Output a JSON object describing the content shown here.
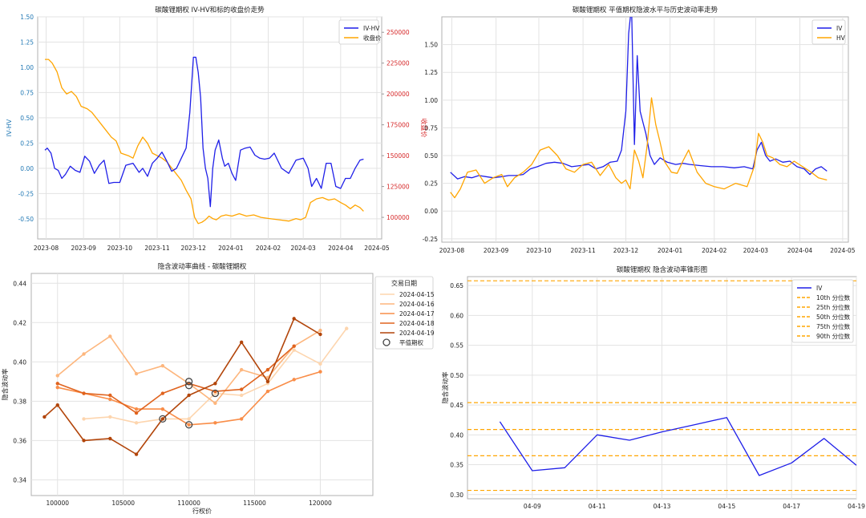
{
  "chart_data": [
    {
      "type": "line",
      "title": "碳酸锂期权 IV-HV和标的收盘价走势",
      "ylabel": "IV-HV",
      "y2label": "收盘价",
      "x_ticks": [
        "2023-08",
        "2023-09",
        "2023-10",
        "2023-11",
        "2023-12",
        "2024-01",
        "2024-02",
        "2024-03",
        "2024-04",
        "2024-05"
      ],
      "x_range": [
        "2023-07-25",
        "2024-05-05"
      ],
      "ylim": [
        -0.7,
        1.5
      ],
      "y_ticks": [
        -0.5,
        -0.25,
        0,
        0.25,
        0.5,
        0.75,
        1,
        1.25,
        1.5
      ],
      "y_tick_labels": [
        "-0.50",
        "-0.25",
        "0.00",
        "0.25",
        "0.50",
        "0.75",
        "1.00",
        "1.25",
        "1.50"
      ],
      "y2lim": [
        82500,
        262500
      ],
      "y2_ticks": [
        100000,
        125000,
        150000,
        175000,
        200000,
        225000,
        250000
      ],
      "y2_tick_labels": [
        "100000",
        "125000",
        "150000",
        "175000",
        "200000",
        "225000",
        "250000"
      ],
      "grid": true,
      "legend_position": "top-right",
      "colors": {
        "left_axis": "#1f77b4",
        "right_axis": "#d62728"
      },
      "series": [
        {
          "name": "IV-HV",
          "axis": "left",
          "color": "#1f1fe8",
          "x": [
            "2023-07-31",
            "2023-08-02",
            "2023-08-05",
            "2023-08-08",
            "2023-08-11",
            "2023-08-14",
            "2023-08-17",
            "2023-08-21",
            "2023-08-25",
            "2023-08-29",
            "2023-09-02",
            "2023-09-06",
            "2023-09-10",
            "2023-09-14",
            "2023-09-18",
            "2023-09-22",
            "2023-09-26",
            "2023-10-01",
            "2023-10-06",
            "2023-10-12",
            "2023-10-17",
            "2023-10-20",
            "2023-10-24",
            "2023-10-28",
            "2023-11-01",
            "2023-11-05",
            "2023-11-09",
            "2023-11-13",
            "2023-11-17",
            "2023-11-21",
            "2023-11-25",
            "2023-11-28",
            "2023-12-01",
            "2023-12-03",
            "2023-12-05",
            "2023-12-07",
            "2023-12-09",
            "2023-12-11",
            "2023-12-13",
            "2023-12-15",
            "2023-12-17",
            "2023-12-19",
            "2023-12-22",
            "2023-12-25",
            "2023-12-27",
            "2023-12-30",
            "2024-01-02",
            "2024-01-05",
            "2024-01-09",
            "2024-01-13",
            "2024-01-17",
            "2024-01-21",
            "2024-01-25",
            "2024-01-29",
            "2024-02-02",
            "2024-02-06",
            "2024-02-12",
            "2024-02-18",
            "2024-02-24",
            "2024-03-01",
            "2024-03-05",
            "2024-03-08",
            "2024-03-12",
            "2024-03-16",
            "2024-03-20",
            "2024-03-24",
            "2024-03-28",
            "2024-04-01",
            "2024-04-05",
            "2024-04-09",
            "2024-04-13",
            "2024-04-17",
            "2024-04-20"
          ],
          "values": [
            0.18,
            0.2,
            0.15,
            0.0,
            -0.02,
            -0.1,
            -0.06,
            0.02,
            -0.02,
            -0.04,
            0.12,
            0.07,
            -0.05,
            0.03,
            0.08,
            -0.15,
            -0.14,
            -0.14,
            0.03,
            0.05,
            -0.04,
            0.0,
            -0.08,
            0.05,
            0.1,
            0.16,
            0.07,
            -0.03,
            0.0,
            0.1,
            0.2,
            0.55,
            1.1,
            1.1,
            0.95,
            0.7,
            0.2,
            0.0,
            -0.1,
            -0.38,
            0.0,
            0.18,
            0.28,
            0.1,
            0.02,
            0.05,
            -0.05,
            -0.12,
            0.18,
            0.2,
            0.21,
            0.13,
            0.1,
            0.09,
            0.1,
            0.15,
            0.0,
            -0.05,
            0.08,
            0.1,
            0.0,
            -0.18,
            -0.1,
            -0.2,
            0.05,
            0.05,
            -0.18,
            -0.2,
            -0.1,
            -0.1,
            0.0,
            0.08,
            0.09
          ]
        },
        {
          "name": "收盘价",
          "axis": "right",
          "color": "#ffa500",
          "x": [
            "2023-07-31",
            "2023-08-03",
            "2023-08-06",
            "2023-08-10",
            "2023-08-14",
            "2023-08-18",
            "2023-08-22",
            "2023-08-26",
            "2023-08-30",
            "2023-09-04",
            "2023-09-08",
            "2023-09-12",
            "2023-09-16",
            "2023-09-20",
            "2023-09-24",
            "2023-09-28",
            "2023-10-02",
            "2023-10-08",
            "2023-10-12",
            "2023-10-16",
            "2023-10-20",
            "2023-10-24",
            "2023-10-28",
            "2023-11-01",
            "2023-11-05",
            "2023-11-09",
            "2023-11-13",
            "2023-11-17",
            "2023-11-21",
            "2023-11-25",
            "2023-11-29",
            "2023-12-02",
            "2023-12-05",
            "2023-12-08",
            "2023-12-11",
            "2023-12-14",
            "2023-12-17",
            "2023-12-20",
            "2023-12-24",
            "2023-12-28",
            "2024-01-02",
            "2024-01-08",
            "2024-01-14",
            "2024-01-20",
            "2024-01-26",
            "2024-02-02",
            "2024-02-10",
            "2024-02-18",
            "2024-02-24",
            "2024-02-28",
            "2024-03-03",
            "2024-03-07",
            "2024-03-12",
            "2024-03-17",
            "2024-03-22",
            "2024-03-27",
            "2024-04-01",
            "2024-04-05",
            "2024-04-09",
            "2024-04-13",
            "2024-04-17",
            "2024-04-20"
          ],
          "values": [
            228000,
            228000,
            225000,
            218000,
            205000,
            200000,
            202000,
            198000,
            190000,
            188000,
            185000,
            180000,
            175000,
            170000,
            165000,
            162000,
            152000,
            150000,
            148000,
            158000,
            165000,
            160000,
            152000,
            150000,
            148000,
            145000,
            140000,
            135000,
            130000,
            122000,
            115000,
            100000,
            95000,
            96000,
            98000,
            101000,
            99000,
            98000,
            101000,
            102000,
            101000,
            103000,
            101000,
            102000,
            100000,
            99000,
            98000,
            97000,
            99000,
            98000,
            100000,
            112000,
            115000,
            116000,
            114000,
            115000,
            112000,
            110000,
            107000,
            110000,
            108000,
            105000
          ]
        }
      ]
    },
    {
      "type": "line",
      "title": "碳酸锂期权 平值期权隐波水平与历史波动率走势",
      "x_ticks": [
        "2023-08",
        "2023-09",
        "2023-10",
        "2023-11",
        "2023-12",
        "2024-01",
        "2024-02",
        "2024-03",
        "2024-04",
        "2024-05"
      ],
      "x_range": [
        "2023-07-25",
        "2024-05-05"
      ],
      "ylim": [
        -0.28,
        1.75
      ],
      "y_ticks": [
        -0.25,
        0,
        0.25,
        0.5,
        0.75,
        1,
        1.25,
        1.5
      ],
      "y_tick_labels": [
        "-0.25",
        "0.00",
        "0.25",
        "0.50",
        "0.75",
        "1.00",
        "1.25",
        "1.50"
      ],
      "grid": true,
      "legend_position": "top-right",
      "series": [
        {
          "name": "IV",
          "color": "#1f1fe8",
          "x": [
            "2023-07-31",
            "2023-08-05",
            "2023-08-10",
            "2023-08-15",
            "2023-08-20",
            "2023-08-25",
            "2023-08-30",
            "2023-09-05",
            "2023-09-10",
            "2023-09-15",
            "2023-09-20",
            "2023-09-25",
            "2023-09-30",
            "2023-10-06",
            "2023-10-12",
            "2023-10-18",
            "2023-10-24",
            "2023-10-30",
            "2023-11-05",
            "2023-11-10",
            "2023-11-15",
            "2023-11-20",
            "2023-11-25",
            "2023-11-28",
            "2023-12-01",
            "2023-12-03",
            "2023-12-05",
            "2023-12-07",
            "2023-12-09",
            "2023-12-11",
            "2023-12-13",
            "2023-12-15",
            "2023-12-18",
            "2023-12-21",
            "2023-12-25",
            "2023-12-30",
            "2024-01-05",
            "2024-01-10",
            "2024-01-15",
            "2024-01-22",
            "2024-01-30",
            "2024-02-07",
            "2024-02-15",
            "2024-02-22",
            "2024-02-28",
            "2024-03-02",
            "2024-03-05",
            "2024-03-08",
            "2024-03-11",
            "2024-03-15",
            "2024-03-20",
            "2024-03-25",
            "2024-03-30",
            "2024-04-04",
            "2024-04-08",
            "2024-04-12",
            "2024-04-16",
            "2024-04-20"
          ],
          "values": [
            0.35,
            0.29,
            0.31,
            0.3,
            0.32,
            0.31,
            0.3,
            0.31,
            0.32,
            0.32,
            0.33,
            0.38,
            0.4,
            0.43,
            0.44,
            0.43,
            0.4,
            0.41,
            0.42,
            0.38,
            0.4,
            0.44,
            0.45,
            0.55,
            0.9,
            1.6,
            1.85,
            0.6,
            1.4,
            0.9,
            0.8,
            0.7,
            0.5,
            0.42,
            0.48,
            0.44,
            0.42,
            0.43,
            0.42,
            0.41,
            0.4,
            0.4,
            0.39,
            0.4,
            0.38,
            0.55,
            0.62,
            0.5,
            0.45,
            0.47,
            0.44,
            0.45,
            0.4,
            0.38,
            0.33,
            0.38,
            0.4,
            0.36
          ]
        },
        {
          "name": "HV",
          "color": "#ffa500",
          "x": [
            "2023-07-31",
            "2023-08-03",
            "2023-08-07",
            "2023-08-12",
            "2023-08-18",
            "2023-08-24",
            "2023-08-30",
            "2023-09-05",
            "2023-09-09",
            "2023-09-14",
            "2023-09-20",
            "2023-09-26",
            "2023-10-02",
            "2023-10-08",
            "2023-10-14",
            "2023-10-20",
            "2023-10-26",
            "2023-11-01",
            "2023-11-07",
            "2023-11-13",
            "2023-11-19",
            "2023-11-24",
            "2023-11-28",
            "2023-12-01",
            "2023-12-04",
            "2023-12-07",
            "2023-12-10",
            "2023-12-13",
            "2023-12-16",
            "2023-12-19",
            "2023-12-22",
            "2023-12-25",
            "2023-12-28",
            "2024-01-02",
            "2024-01-06",
            "2024-01-10",
            "2024-01-14",
            "2024-01-20",
            "2024-01-26",
            "2024-02-01",
            "2024-02-08",
            "2024-02-16",
            "2024-02-24",
            "2024-02-29",
            "2024-03-03",
            "2024-03-06",
            "2024-03-09",
            "2024-03-13",
            "2024-03-18",
            "2024-03-23",
            "2024-03-28",
            "2024-04-03",
            "2024-04-09",
            "2024-04-14",
            "2024-04-20"
          ],
          "values": [
            0.17,
            0.12,
            0.2,
            0.35,
            0.37,
            0.25,
            0.3,
            0.33,
            0.22,
            0.3,
            0.35,
            0.42,
            0.55,
            0.58,
            0.5,
            0.38,
            0.35,
            0.42,
            0.44,
            0.32,
            0.42,
            0.3,
            0.25,
            0.28,
            0.2,
            0.55,
            0.45,
            0.3,
            0.6,
            1.02,
            0.78,
            0.62,
            0.45,
            0.35,
            0.34,
            0.45,
            0.55,
            0.35,
            0.25,
            0.22,
            0.2,
            0.25,
            0.22,
            0.4,
            0.7,
            0.62,
            0.5,
            0.48,
            0.42,
            0.4,
            0.45,
            0.4,
            0.35,
            0.3,
            0.28
          ]
        }
      ]
    },
    {
      "type": "line",
      "title": "隐含波动率曲线 - 碳酸锂期权",
      "xlabel": "行权价",
      "ylabel": "隐含波动率",
      "xlim": [
        98000,
        124000
      ],
      "x_ticks": [
        100000,
        105000,
        110000,
        115000,
        120000
      ],
      "x_tick_labels": [
        "100000",
        "105000",
        "110000",
        "115000",
        "120000"
      ],
      "ylim": [
        0.332,
        0.445
      ],
      "y_ticks": [
        0.34,
        0.36,
        0.38,
        0.4,
        0.42,
        0.44
      ],
      "y_tick_labels": [
        "0.34",
        "0.36",
        "0.38",
        "0.40",
        "0.42",
        "0.44"
      ],
      "grid": true,
      "legend_title": "交易日期",
      "legend_position": "outside-right-top",
      "atm_label": "平值期权",
      "series": [
        {
          "name": "2024-04-15",
          "color": "#fdd5ae",
          "x": [
            102000,
            104000,
            106000,
            108000,
            110000,
            112000,
            114000,
            116000,
            118000,
            120000,
            122000
          ],
          "values": [
            0.371,
            0.372,
            0.369,
            0.371,
            0.371,
            0.384,
            0.383,
            0.389,
            0.406,
            0.399,
            0.417
          ]
        },
        {
          "name": "2024-04-16",
          "color": "#fdb67d",
          "x": [
            100000,
            102000,
            104000,
            106000,
            108000,
            110000,
            112000,
            114000,
            116000,
            118000,
            120000
          ],
          "values": [
            0.393,
            0.404,
            0.413,
            0.394,
            0.398,
            0.389,
            0.379,
            0.396,
            0.392,
            0.408,
            0.416
          ]
        },
        {
          "name": "2024-04-17",
          "color": "#f98d48",
          "x": [
            100000,
            102000,
            104000,
            106000,
            108000,
            110000,
            112000,
            114000,
            116000,
            118000,
            120000
          ],
          "values": [
            0.387,
            0.384,
            0.381,
            0.376,
            0.376,
            0.368,
            0.369,
            0.371,
            0.385,
            0.391,
            0.395
          ]
        },
        {
          "name": "2024-04-18",
          "color": "#e0631e",
          "x": [
            100000,
            102000,
            104000,
            106000,
            108000,
            110000,
            112000,
            114000,
            116000,
            118000
          ],
          "values": [
            0.389,
            0.384,
            0.383,
            0.374,
            0.384,
            0.389,
            0.385,
            0.386,
            0.396,
            0.408
          ]
        },
        {
          "name": "2024-04-19",
          "color": "#b2450a",
          "x": [
            99000,
            100000,
            102000,
            104000,
            106000,
            108000,
            110000,
            112000,
            114000,
            116000,
            118000,
            120000
          ],
          "values": [
            0.372,
            0.378,
            0.36,
            0.361,
            0.353,
            0.371,
            0.383,
            0.389,
            0.41,
            0.39,
            0.422,
            0.414
          ]
        }
      ],
      "atm_points": [
        {
          "x": 108000,
          "y": 0.371
        },
        {
          "x": 110000,
          "y": 0.368
        },
        {
          "x": 110000,
          "y": 0.388
        },
        {
          "x": 110000,
          "y": 0.39
        },
        {
          "x": 112000,
          "y": 0.384
        }
      ]
    },
    {
      "type": "line",
      "title": "碳酸锂期权 隐含波动率锥形图",
      "ylabel": "隐含波动率",
      "x_ticks": [
        "04-09",
        "04-11",
        "04-13",
        "04-15",
        "04-17",
        "04-19"
      ],
      "x_range": [
        "2024-04-07",
        "2024-04-19"
      ],
      "ylim": [
        0.293,
        0.665
      ],
      "y_ticks": [
        0.3,
        0.35,
        0.4,
        0.45,
        0.5,
        0.55,
        0.6,
        0.65
      ],
      "y_tick_labels": [
        "0.30",
        "0.35",
        "0.40",
        "0.45",
        "0.50",
        "0.55",
        "0.60",
        "0.65"
      ],
      "grid": true,
      "legend_position": "top-right",
      "series": [
        {
          "name": "IV",
          "color": "#1f1fe8",
          "x": [
            "2024-04-08",
            "2024-04-09",
            "2024-04-10",
            "2024-04-11",
            "2024-04-12",
            "2024-04-13",
            "2024-04-14",
            "2024-04-15",
            "2024-04-16",
            "2024-04-17",
            "2024-04-18",
            "2024-04-19"
          ],
          "values": [
            0.422,
            0.34,
            0.345,
            0.4,
            0.391,
            0.405,
            0.417,
            0.429,
            0.332,
            0.353,
            0.394,
            0.349
          ]
        }
      ],
      "percentiles": [
        {
          "name": "10th 分位数",
          "value": 0.307
        },
        {
          "name": "25th 分位数",
          "value": 0.365
        },
        {
          "name": "50th 分位数",
          "value": 0.409
        },
        {
          "name": "75th 分位数",
          "value": 0.454
        },
        {
          "name": "90th 分位数",
          "value": 0.658
        }
      ],
      "percentile_color": "#ffa500"
    }
  ]
}
